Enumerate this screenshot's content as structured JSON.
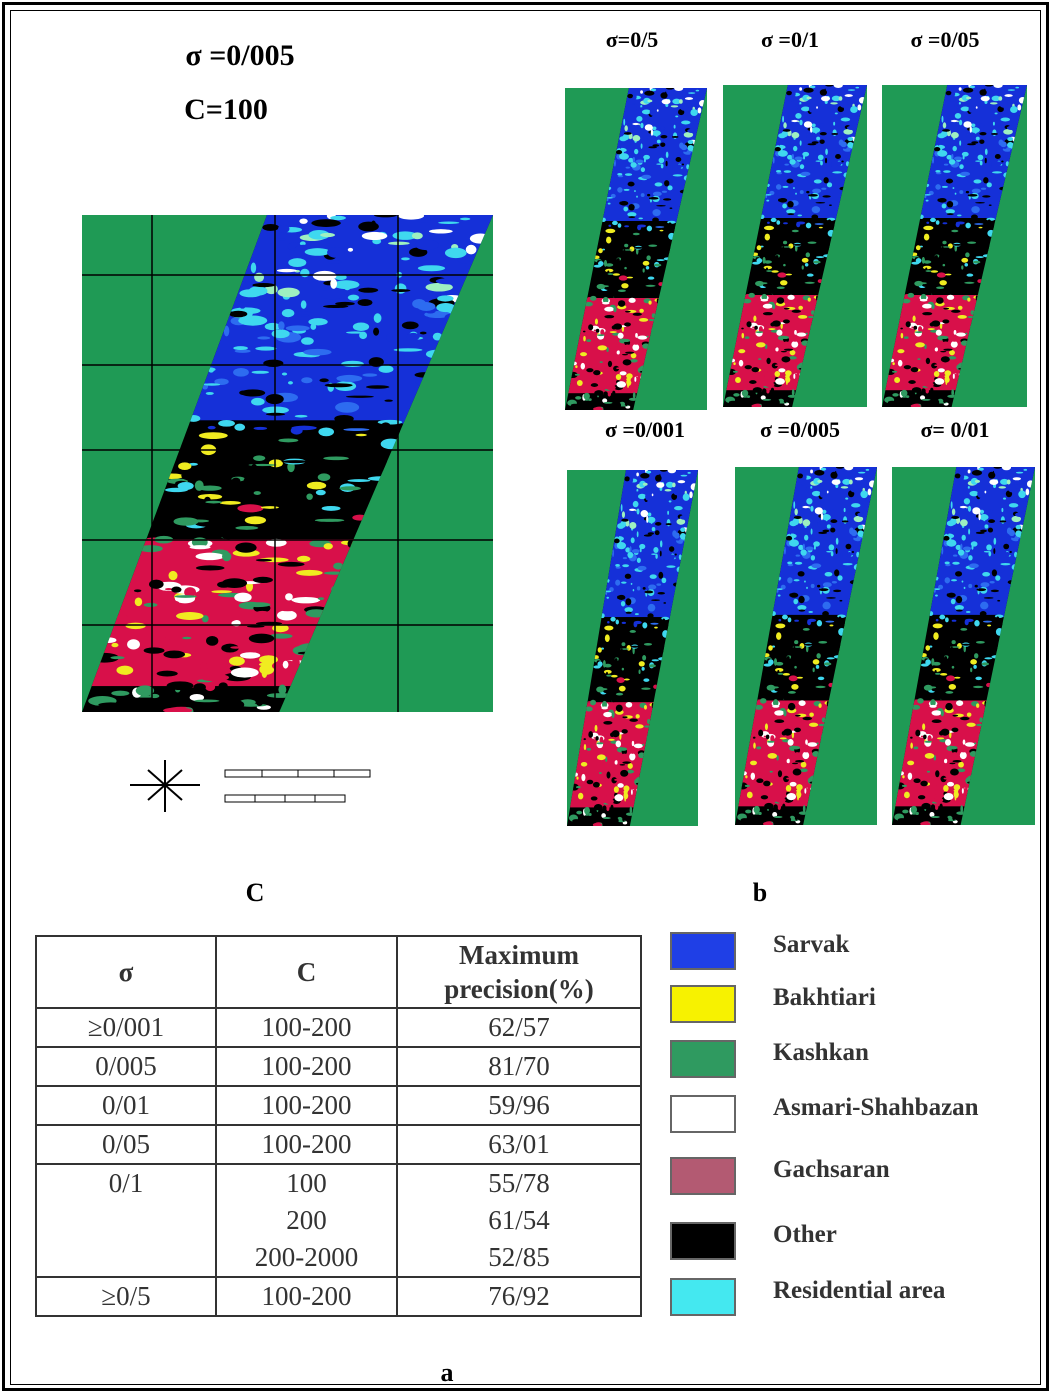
{
  "large_map": {
    "title": "σ =0/005",
    "subtitle": "C=100",
    "caption": "C"
  },
  "small_maps": {
    "labels": [
      "σ=0/5",
      "σ =0/1",
      "σ =0/05",
      "σ =0/001",
      "σ =0/005",
      "σ= 0/01"
    ],
    "caption": "b"
  },
  "table": {
    "headers": [
      "σ",
      "C",
      "Maximum precision(%)"
    ],
    "rows": [
      {
        "sigma": "≥0/001",
        "c": [
          "100-200"
        ],
        "precision": [
          "62/57"
        ]
      },
      {
        "sigma": "0/005",
        "c": [
          "100-200"
        ],
        "precision": [
          "81/70"
        ]
      },
      {
        "sigma": "0/01",
        "c": [
          "100-200"
        ],
        "precision": [
          "59/96"
        ]
      },
      {
        "sigma": "0/05",
        "c": [
          "100-200"
        ],
        "precision": [
          "63/01"
        ]
      },
      {
        "sigma": "0/1",
        "c": [
          "100",
          "200",
          "200-2000"
        ],
        "precision": [
          "55/78",
          "61/54",
          "52/85"
        ]
      },
      {
        "sigma": "≥0/5",
        "c": [
          "100-200"
        ],
        "precision": [
          "76/92"
        ]
      }
    ],
    "caption": "a"
  },
  "legend": [
    {
      "label": "Sarvak",
      "color": "#1f3fe6"
    },
    {
      "label": "Bakhtiari",
      "color": "#f7f200"
    },
    {
      "label": "Kashkan",
      "color": "#2f9a60"
    },
    {
      "label": "Asmari-Shahbazan",
      "color": "#ffffff"
    },
    {
      "label": "Gachsaran",
      "color": "#b35a72"
    },
    {
      "label": "Other",
      "color": "#000000"
    },
    {
      "label": "Residential area",
      "color": "#44e8f0"
    }
  ]
}
